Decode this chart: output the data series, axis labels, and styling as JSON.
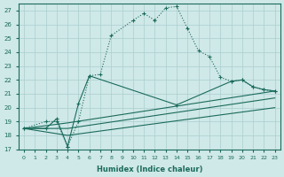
{
  "xlabel": "Humidex (Indice chaleur)",
  "ylabel": "",
  "background_color": "#cfe8e8",
  "grid_color": "#aacfcf",
  "line_color": "#1a6b5a",
  "xlim": [
    -0.5,
    23.5
  ],
  "ylim": [
    17,
    27.5
  ],
  "yticks": [
    17,
    18,
    19,
    20,
    21,
    22,
    23,
    24,
    25,
    26,
    27
  ],
  "xticks": [
    0,
    1,
    2,
    3,
    4,
    5,
    6,
    7,
    8,
    9,
    10,
    11,
    12,
    13,
    14,
    15,
    16,
    17,
    18,
    19,
    20,
    21,
    22,
    23
  ],
  "curve1_x": [
    0,
    2,
    3,
    4,
    5,
    6,
    7,
    8,
    10,
    11,
    12,
    13,
    14,
    15,
    16,
    17,
    18,
    19,
    20,
    21,
    22,
    23
  ],
  "curve1_y": [
    18.5,
    19.0,
    19.0,
    17.2,
    19.0,
    22.3,
    22.4,
    25.2,
    26.3,
    26.8,
    26.3,
    27.2,
    27.3,
    25.7,
    24.1,
    23.7,
    22.2,
    21.9,
    22.0,
    21.5,
    21.3,
    21.2
  ],
  "curve2_x": [
    0,
    2,
    3,
    4,
    5,
    6,
    14,
    19,
    20,
    21,
    22,
    23
  ],
  "curve2_y": [
    18.5,
    18.5,
    19.2,
    17.2,
    20.3,
    22.3,
    20.2,
    21.9,
    22.0,
    21.5,
    21.3,
    21.2
  ],
  "line3_x": [
    0,
    4,
    23
  ],
  "line3_y": [
    18.5,
    18.9,
    21.2
  ],
  "line4_x": [
    0,
    4,
    23
  ],
  "line4_y": [
    18.5,
    18.5,
    20.7
  ],
  "line5_x": [
    0,
    4,
    23
  ],
  "line5_y": [
    18.5,
    18.0,
    20.0
  ]
}
